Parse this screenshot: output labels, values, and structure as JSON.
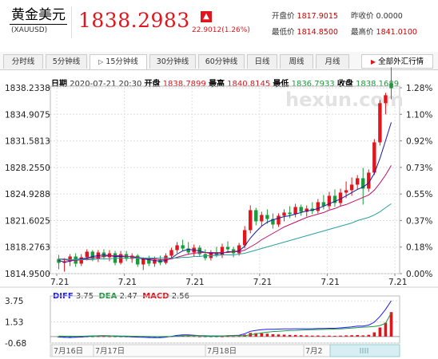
{
  "header": {
    "name": "黄金美元",
    "code": "(XAUUSD)",
    "price": "1838.2983",
    "change": "22.9012(1.26%)",
    "open_label": "开盘价",
    "open": "1817.9015",
    "prev_label": "昨收价",
    "prev": "0.0000",
    "low_label": "最低价",
    "low": "1814.8500",
    "high_label": "最高价",
    "high": "1841.0100"
  },
  "tabs": [
    "分时线",
    "5分钟线",
    "15分钟线",
    "30分钟线",
    "60分钟线",
    "日线",
    "周线",
    "月线"
  ],
  "active_tab": "15分钟线",
  "control": "全部外汇行情",
  "info": {
    "date_k": "日期",
    "date": "2020-07-21 20:30",
    "open_k": "开盘",
    "open": "1838.7899",
    "high_k": "最高",
    "high": "1840.8145",
    "low_k": "最低",
    "low": "1836.7933",
    "close_k": "收盘",
    "close": "1838.1689"
  },
  "watermark": "hexun.com",
  "colors": {
    "up": "#e0161c",
    "down": "#1a9a3a",
    "ma1": "#1a1aa0",
    "ma2": "#c0106a",
    "ma3": "#2aa0a0",
    "diff": "#1a1aff",
    "dea": "#1a9a3a"
  },
  "chart_data": [
    {
      "type": "candlestick",
      "y_ticks": [
        "1838.2338",
        "1834.9075",
        "1831.5813",
        "1828.2550",
        "1824.9288",
        "1821.6025",
        "1818.2763",
        "1814.9500"
      ],
      "pct_ticks": [
        "1.28%",
        "1.10%",
        "0.92%",
        "0.73%",
        "0.55%",
        "0.37%",
        "0.18%",
        "0.00%"
      ],
      "x_ticks": [
        "7.21",
        "7.21",
        "7.21",
        "7.21",
        "7.21",
        "7.21"
      ],
      "ylim": [
        1814.95,
        1838.2338
      ],
      "candles": [
        [
          1816.8,
          1817.3,
          1815.5,
          1816.3
        ],
        [
          1816.3,
          1816.9,
          1815.2,
          1816.5
        ],
        [
          1816.5,
          1817.4,
          1815.9,
          1817.1
        ],
        [
          1817.1,
          1817.5,
          1815.8,
          1816.2
        ],
        [
          1816.2,
          1817.4,
          1815.9,
          1817.0
        ],
        [
          1817.0,
          1818.0,
          1816.6,
          1817.7
        ],
        [
          1817.7,
          1817.9,
          1816.5,
          1816.8
        ],
        [
          1816.8,
          1817.9,
          1816.4,
          1817.6
        ],
        [
          1817.6,
          1818.0,
          1816.7,
          1817.0
        ],
        [
          1817.0,
          1817.9,
          1816.5,
          1817.5
        ],
        [
          1817.5,
          1817.8,
          1816.0,
          1816.3
        ],
        [
          1816.3,
          1817.8,
          1816.1,
          1817.4
        ],
        [
          1817.4,
          1817.8,
          1816.5,
          1816.8
        ],
        [
          1816.8,
          1817.5,
          1816.3,
          1817.2
        ],
        [
          1817.2,
          1817.4,
          1815.8,
          1816.1
        ],
        [
          1816.1,
          1817.0,
          1815.4,
          1816.8
        ],
        [
          1816.8,
          1817.2,
          1815.9,
          1816.2
        ],
        [
          1816.2,
          1817.1,
          1815.8,
          1816.7
        ],
        [
          1816.7,
          1817.2,
          1816.0,
          1816.3
        ],
        [
          1816.3,
          1817.5,
          1816.1,
          1817.2
        ],
        [
          1817.2,
          1818.2,
          1816.9,
          1817.9
        ],
        [
          1817.9,
          1818.9,
          1817.5,
          1818.5
        ],
        [
          1818.5,
          1819.2,
          1817.8,
          1818.1
        ],
        [
          1818.1,
          1818.9,
          1817.3,
          1817.6
        ],
        [
          1817.6,
          1818.6,
          1817.1,
          1818.2
        ],
        [
          1818.2,
          1818.5,
          1817.1,
          1817.4
        ],
        [
          1817.4,
          1818.0,
          1816.6,
          1816.9
        ],
        [
          1816.9,
          1817.9,
          1816.6,
          1817.6
        ],
        [
          1817.6,
          1818.3,
          1817.0,
          1817.3
        ],
        [
          1817.3,
          1818.7,
          1816.9,
          1818.3
        ],
        [
          1818.3,
          1819.0,
          1817.6,
          1818.0
        ],
        [
          1818.0,
          1818.3,
          1817.0,
          1817.5
        ],
        [
          1817.5,
          1818.8,
          1817.2,
          1818.5
        ],
        [
          1818.5,
          1820.9,
          1818.1,
          1820.4
        ],
        [
          1820.4,
          1823.5,
          1820.0,
          1822.9
        ],
        [
          1822.9,
          1823.2,
          1821.0,
          1821.5
        ],
        [
          1821.5,
          1822.7,
          1820.9,
          1822.3
        ],
        [
          1822.3,
          1823.0,
          1821.2,
          1821.8
        ],
        [
          1821.8,
          1822.5,
          1820.6,
          1821.1
        ],
        [
          1821.1,
          1822.5,
          1820.8,
          1822.2
        ],
        [
          1822.2,
          1823.0,
          1821.5,
          1822.6
        ],
        [
          1822.6,
          1823.4,
          1821.9,
          1822.4
        ],
        [
          1822.4,
          1823.7,
          1822.0,
          1823.3
        ],
        [
          1823.3,
          1823.6,
          1822.2,
          1822.7
        ],
        [
          1822.7,
          1823.5,
          1822.1,
          1823.1
        ],
        [
          1823.1,
          1823.9,
          1822.4,
          1822.8
        ],
        [
          1822.8,
          1824.3,
          1822.5,
          1823.9
        ],
        [
          1823.9,
          1824.8,
          1823.0,
          1823.4
        ],
        [
          1823.4,
          1825.2,
          1823.0,
          1824.7
        ],
        [
          1824.7,
          1825.5,
          1823.3,
          1823.8
        ],
        [
          1823.8,
          1825.6,
          1823.4,
          1825.1
        ],
        [
          1825.1,
          1826.5,
          1824.4,
          1825.4
        ],
        [
          1825.4,
          1827.0,
          1824.7,
          1826.1
        ],
        [
          1826.1,
          1827.3,
          1825.5,
          1826.9
        ],
        [
          1826.9,
          1828.2,
          1823.6,
          1825.6
        ],
        [
          1825.6,
          1828.0,
          1825.2,
          1827.6
        ],
        [
          1827.6,
          1831.8,
          1827.3,
          1831.4
        ],
        [
          1831.4,
          1836.7,
          1831.0,
          1836.3
        ],
        [
          1836.3,
          1837.6,
          1834.9,
          1837.3
        ],
        [
          1838.79,
          1840.81,
          1836.79,
          1838.17
        ]
      ],
      "ma_lines": [
        {
          "name": "ma1",
          "values": [
            1816.6,
            1816.4,
            1816.5,
            1816.7,
            1816.8,
            1816.9,
            1817.1,
            1817.2,
            1817.3,
            1817.2,
            1817.1,
            1817.1,
            1817.1,
            1817.1,
            1816.9,
            1816.8,
            1816.7,
            1816.6,
            1816.5,
            1816.6,
            1816.9,
            1817.4,
            1817.8,
            1818.0,
            1817.9,
            1817.8,
            1817.6,
            1817.5,
            1817.4,
            1817.5,
            1817.7,
            1817.7,
            1817.8,
            1818.4,
            1819.4,
            1820.2,
            1820.9,
            1821.4,
            1821.7,
            1821.9,
            1822.1,
            1822.2,
            1822.4,
            1822.6,
            1822.8,
            1822.9,
            1823.1,
            1823.4,
            1823.7,
            1824.0,
            1824.3,
            1824.7,
            1825.1,
            1825.5,
            1825.8,
            1826.3,
            1827.5,
            1829.4,
            1831.6,
            1833.9
          ]
        },
        {
          "name": "ma2",
          "values": [
            1816.8,
            1816.7,
            1816.6,
            1816.6,
            1816.7,
            1816.8,
            1816.9,
            1817.0,
            1817.1,
            1817.2,
            1817.2,
            1817.2,
            1817.1,
            1817.1,
            1817.0,
            1816.9,
            1816.8,
            1816.8,
            1816.7,
            1816.7,
            1816.8,
            1817.0,
            1817.2,
            1817.4,
            1817.5,
            1817.6,
            1817.6,
            1817.6,
            1817.6,
            1817.6,
            1817.6,
            1817.7,
            1817.7,
            1817.9,
            1818.3,
            1818.7,
            1819.2,
            1819.6,
            1820.0,
            1820.4,
            1820.8,
            1821.1,
            1821.4,
            1821.7,
            1822.0,
            1822.2,
            1822.4,
            1822.6,
            1822.9,
            1823.1,
            1823.4,
            1823.6,
            1823.9,
            1824.2,
            1824.5,
            1824.8,
            1825.4,
            1826.3,
            1827.3,
            1828.5
          ]
        },
        {
          "name": "ma3",
          "values": [
            1816.8,
            1816.8,
            1816.7,
            1816.7,
            1816.7,
            1816.7,
            1816.7,
            1816.8,
            1816.8,
            1816.8,
            1816.9,
            1816.9,
            1816.9,
            1816.9,
            1816.9,
            1816.9,
            1816.9,
            1816.9,
            1816.9,
            1816.9,
            1816.9,
            1816.9,
            1817.0,
            1817.0,
            1817.1,
            1817.1,
            1817.2,
            1817.2,
            1817.2,
            1817.3,
            1817.3,
            1817.3,
            1817.4,
            1817.5,
            1817.7,
            1817.9,
            1818.1,
            1818.3,
            1818.5,
            1818.7,
            1818.9,
            1819.1,
            1819.3,
            1819.5,
            1819.7,
            1819.9,
            1820.1,
            1820.3,
            1820.5,
            1820.7,
            1820.9,
            1821.1,
            1821.3,
            1821.6,
            1821.8,
            1822.0,
            1822.3,
            1822.7,
            1823.2,
            1823.7
          ]
        }
      ]
    },
    {
      "type": "macd",
      "diff_label": "DIFF",
      "diff": "3.75",
      "dea_label": "DEA",
      "dea": "2.47",
      "macd_label": "MACD",
      "macd": "2.56",
      "y_ticks": [
        "3.75",
        "1.53",
        "-0.68"
      ],
      "ylim": [
        -0.68,
        3.75
      ],
      "date_labels": [
        "7月16日",
        "7月17日",
        "7月18日",
        "7月2"
      ],
      "hist": [
        -0.1,
        -0.12,
        -0.14,
        -0.1,
        -0.08,
        -0.05,
        -0.02,
        0.02,
        0.03,
        0.01,
        -0.02,
        -0.03,
        -0.05,
        -0.06,
        -0.08,
        -0.09,
        -0.1,
        -0.11,
        -0.1,
        -0.06,
        0.02,
        0.08,
        0.1,
        0.07,
        0.04,
        0.0,
        -0.03,
        -0.02,
        -0.03,
        0.0,
        0.03,
        0.02,
        0.04,
        0.2,
        0.38,
        0.36,
        0.34,
        0.3,
        0.24,
        0.22,
        0.2,
        0.17,
        0.17,
        0.14,
        0.12,
        0.1,
        0.11,
        0.09,
        0.1,
        0.08,
        0.1,
        0.12,
        0.14,
        0.16,
        0.12,
        0.18,
        0.44,
        0.95,
        1.45,
        2.56
      ],
      "diff_series": [
        -0.05,
        -0.08,
        -0.1,
        -0.08,
        -0.05,
        0.0,
        0.05,
        0.08,
        0.1,
        0.08,
        0.05,
        0.02,
        0.0,
        -0.03,
        -0.06,
        -0.08,
        -0.1,
        -0.12,
        -0.11,
        -0.06,
        0.02,
        0.12,
        0.18,
        0.17,
        0.14,
        0.1,
        0.06,
        0.05,
        0.04,
        0.06,
        0.1,
        0.11,
        0.14,
        0.3,
        0.55,
        0.65,
        0.72,
        0.76,
        0.76,
        0.78,
        0.8,
        0.8,
        0.82,
        0.82,
        0.82,
        0.82,
        0.84,
        0.84,
        0.87,
        0.87,
        0.91,
        0.96,
        1.02,
        1.1,
        1.1,
        1.2,
        1.5,
        2.1,
        2.85,
        3.75
      ],
      "dea_series": [
        0.05,
        0.04,
        0.04,
        0.02,
        0.03,
        0.05,
        0.07,
        0.06,
        0.07,
        0.07,
        0.07,
        0.05,
        0.05,
        0.03,
        0.02,
        0.01,
        0.0,
        -0.01,
        -0.01,
        0.0,
        0.0,
        0.04,
        0.08,
        0.1,
        0.1,
        0.1,
        0.09,
        0.07,
        0.07,
        0.06,
        0.07,
        0.09,
        0.1,
        0.1,
        0.17,
        0.29,
        0.38,
        0.46,
        0.52,
        0.56,
        0.6,
        0.63,
        0.65,
        0.68,
        0.7,
        0.72,
        0.73,
        0.75,
        0.77,
        0.79,
        0.81,
        0.84,
        0.88,
        0.94,
        0.98,
        1.02,
        1.06,
        1.15,
        1.4,
        2.47
      ]
    }
  ]
}
